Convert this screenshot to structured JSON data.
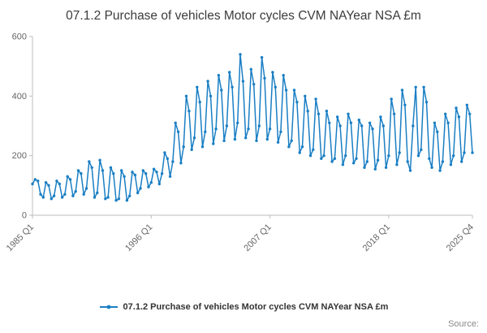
{
  "title": "07.1.2 Purchase of vehicles Motor cycles CVM NAYear NSA £m",
  "legend": {
    "label": "07.1.2 Purchase of vehicles Motor cycles CVM NAYear NSA £m"
  },
  "source_label": "Source:",
  "colors": {
    "line": "#1a7fc4",
    "axis": "#bdbdbd",
    "tick_text": "#666666"
  },
  "chart_data": {
    "type": "line",
    "title": "07.1.2 Purchase of vehicles Motor cycles CVM NAYear NSA £m",
    "xlabel": "",
    "ylabel": "",
    "x_start": "1985 Q1",
    "x_end": "2025 Q4",
    "frequency": "quarterly",
    "grid": false,
    "legend_position": "bottom",
    "ylim": [
      0,
      600
    ],
    "y_ticks": [
      0,
      200,
      400,
      600
    ],
    "x_ticks": [
      {
        "index": 0,
        "label": "1985 Q1"
      },
      {
        "index": 44,
        "label": "1996 Q1"
      },
      {
        "index": 88,
        "label": "2007 Q1"
      },
      {
        "index": 132,
        "label": "2018 Q1"
      },
      {
        "index": 163,
        "label": "2025 Q4"
      }
    ],
    "values": [
      105,
      120,
      115,
      70,
      60,
      110,
      100,
      55,
      65,
      115,
      105,
      60,
      70,
      130,
      120,
      65,
      80,
      150,
      140,
      70,
      90,
      180,
      160,
      60,
      75,
      185,
      150,
      55,
      60,
      160,
      140,
      50,
      55,
      150,
      130,
      50,
      65,
      145,
      135,
      75,
      90,
      150,
      140,
      95,
      110,
      155,
      145,
      105,
      140,
      210,
      190,
      130,
      180,
      310,
      280,
      175,
      230,
      400,
      350,
      220,
      260,
      430,
      380,
      230,
      280,
      450,
      400,
      240,
      290,
      470,
      420,
      250,
      300,
      480,
      430,
      255,
      310,
      540,
      450,
      260,
      290,
      490,
      440,
      250,
      300,
      530,
      460,
      255,
      290,
      480,
      430,
      245,
      280,
      470,
      420,
      230,
      250,
      420,
      380,
      210,
      230,
      400,
      350,
      200,
      220,
      390,
      340,
      190,
      200,
      350,
      310,
      180,
      190,
      330,
      300,
      170,
      200,
      340,
      310,
      175,
      190,
      320,
      300,
      160,
      180,
      310,
      290,
      155,
      185,
      330,
      300,
      160,
      200,
      390,
      340,
      170,
      210,
      420,
      370,
      180,
      150,
      300,
      430,
      200,
      220,
      430,
      380,
      190,
      160,
      310,
      280,
      150,
      180,
      340,
      310,
      170,
      200,
      360,
      330,
      180,
      210,
      370,
      340,
      210
    ]
  }
}
